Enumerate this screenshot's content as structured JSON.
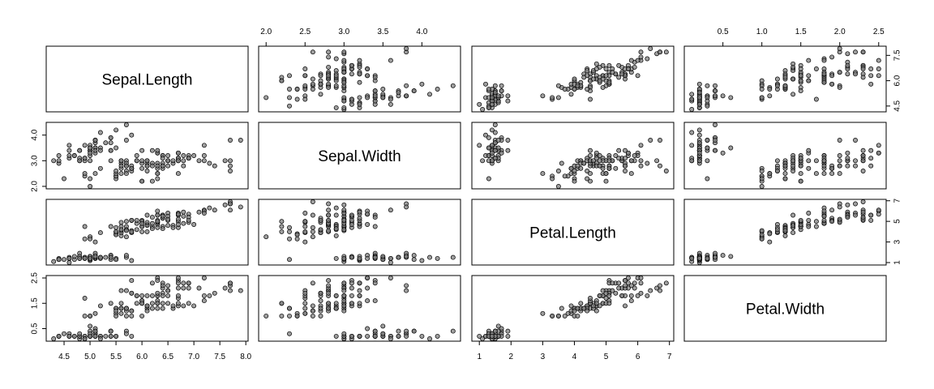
{
  "chart_data": {
    "type": "scatter",
    "title": "",
    "variables": [
      "Sepal.Length",
      "Sepal.Width",
      "Petal.Length",
      "Petal.Width"
    ],
    "ticks": [
      [
        4.5,
        6.0,
        7.5
      ],
      [
        2.0,
        3.0,
        4.0
      ],
      [
        1,
        3,
        5,
        7
      ],
      [
        0.5,
        1.5,
        2.5
      ]
    ],
    "top_ticks": [
      [],
      [
        2.0,
        2.5,
        3.0,
        3.5,
        4.0
      ],
      [],
      [
        0.5,
        1.0,
        1.5,
        2.0,
        2.5
      ]
    ],
    "bottom_ticks": [
      [
        4.5,
        5.0,
        5.5,
        6.0,
        6.5,
        7.0,
        7.5,
        8.0
      ],
      [],
      [
        1,
        2,
        3,
        4,
        5,
        6,
        7
      ],
      []
    ],
    "tick_label_format": [
      [
        "4.5",
        "6.0",
        "7.5"
      ],
      [
        "2.0",
        "3.0",
        "4.0"
      ],
      [
        "1",
        "3",
        "5",
        "7"
      ],
      [
        "0.5",
        "1.5",
        "2.5"
      ]
    ],
    "top_tick_format": [
      [],
      [
        "2.0",
        "2.5",
        "3.0",
        "3.5",
        "4.0"
      ],
      [],
      [
        "0.5",
        "1.0",
        "1.5",
        "2.0",
        "2.5"
      ]
    ],
    "bottom_tick_format": [
      [
        "4.5",
        "5.0",
        "5.5",
        "6.0",
        "6.5",
        "7.0",
        "7.5",
        "8.0"
      ],
      [],
      [
        "1",
        "2",
        "3",
        "4",
        "5",
        "6",
        "7"
      ],
      []
    ],
    "point_color": "#7f7f7f",
    "point_alpha": 0.75,
    "records": [
      [
        5.1,
        3.5,
        1.4,
        0.2
      ],
      [
        4.9,
        3.0,
        1.4,
        0.2
      ],
      [
        4.7,
        3.2,
        1.3,
        0.2
      ],
      [
        4.6,
        3.1,
        1.5,
        0.2
      ],
      [
        5.0,
        3.6,
        1.4,
        0.2
      ],
      [
        5.4,
        3.9,
        1.7,
        0.4
      ],
      [
        4.6,
        3.4,
        1.4,
        0.3
      ],
      [
        5.0,
        3.4,
        1.5,
        0.2
      ],
      [
        4.4,
        2.9,
        1.4,
        0.2
      ],
      [
        4.9,
        3.1,
        1.5,
        0.1
      ],
      [
        5.4,
        3.7,
        1.5,
        0.2
      ],
      [
        4.8,
        3.4,
        1.6,
        0.2
      ],
      [
        4.8,
        3.0,
        1.4,
        0.1
      ],
      [
        4.3,
        3.0,
        1.1,
        0.1
      ],
      [
        5.8,
        4.0,
        1.2,
        0.2
      ],
      [
        5.7,
        4.4,
        1.5,
        0.4
      ],
      [
        5.4,
        3.9,
        1.3,
        0.4
      ],
      [
        5.1,
        3.5,
        1.4,
        0.3
      ],
      [
        5.7,
        3.8,
        1.7,
        0.3
      ],
      [
        5.1,
        3.8,
        1.5,
        0.3
      ],
      [
        5.4,
        3.4,
        1.7,
        0.2
      ],
      [
        5.1,
        3.7,
        1.5,
        0.4
      ],
      [
        4.6,
        3.6,
        1.0,
        0.2
      ],
      [
        5.1,
        3.3,
        1.7,
        0.5
      ],
      [
        4.8,
        3.4,
        1.9,
        0.2
      ],
      [
        5.0,
        3.0,
        1.6,
        0.2
      ],
      [
        5.0,
        3.4,
        1.6,
        0.4
      ],
      [
        5.2,
        3.5,
        1.5,
        0.2
      ],
      [
        5.2,
        3.4,
        1.4,
        0.2
      ],
      [
        4.7,
        3.2,
        1.6,
        0.2
      ],
      [
        4.8,
        3.1,
        1.6,
        0.2
      ],
      [
        5.4,
        3.4,
        1.5,
        0.4
      ],
      [
        5.2,
        4.1,
        1.5,
        0.1
      ],
      [
        5.5,
        4.2,
        1.4,
        0.2
      ],
      [
        4.9,
        3.1,
        1.5,
        0.2
      ],
      [
        5.0,
        3.2,
        1.2,
        0.2
      ],
      [
        5.5,
        3.5,
        1.3,
        0.2
      ],
      [
        4.9,
        3.6,
        1.4,
        0.1
      ],
      [
        4.4,
        3.0,
        1.3,
        0.2
      ],
      [
        5.1,
        3.4,
        1.5,
        0.2
      ],
      [
        5.0,
        3.5,
        1.3,
        0.3
      ],
      [
        4.5,
        2.3,
        1.3,
        0.3
      ],
      [
        4.4,
        3.2,
        1.3,
        0.2
      ],
      [
        5.0,
        3.5,
        1.6,
        0.6
      ],
      [
        5.1,
        3.8,
        1.9,
        0.4
      ],
      [
        4.8,
        3.0,
        1.4,
        0.3
      ],
      [
        5.1,
        3.8,
        1.6,
        0.2
      ],
      [
        4.6,
        3.2,
        1.4,
        0.2
      ],
      [
        5.3,
        3.7,
        1.5,
        0.2
      ],
      [
        5.0,
        3.3,
        1.4,
        0.2
      ],
      [
        7.0,
        3.2,
        4.7,
        1.4
      ],
      [
        6.4,
        3.2,
        4.5,
        1.5
      ],
      [
        6.9,
        3.1,
        4.9,
        1.5
      ],
      [
        5.5,
        2.3,
        4.0,
        1.3
      ],
      [
        6.5,
        2.8,
        4.6,
        1.5
      ],
      [
        5.7,
        2.8,
        4.5,
        1.3
      ],
      [
        6.3,
        3.3,
        4.7,
        1.6
      ],
      [
        4.9,
        2.4,
        3.3,
        1.0
      ],
      [
        6.6,
        2.9,
        4.6,
        1.3
      ],
      [
        5.2,
        2.7,
        3.9,
        1.4
      ],
      [
        5.0,
        2.0,
        3.5,
        1.0
      ],
      [
        5.9,
        3.0,
        4.2,
        1.5
      ],
      [
        6.0,
        2.2,
        4.0,
        1.0
      ],
      [
        6.1,
        2.9,
        4.7,
        1.4
      ],
      [
        5.6,
        2.9,
        3.6,
        1.3
      ],
      [
        6.7,
        3.1,
        4.4,
        1.4
      ],
      [
        5.6,
        3.0,
        4.5,
        1.5
      ],
      [
        5.8,
        2.7,
        4.1,
        1.0
      ],
      [
        6.2,
        2.2,
        4.5,
        1.5
      ],
      [
        5.6,
        2.5,
        3.9,
        1.1
      ],
      [
        5.9,
        3.2,
        4.8,
        1.8
      ],
      [
        6.1,
        2.8,
        4.0,
        1.3
      ],
      [
        6.3,
        2.5,
        4.9,
        1.5
      ],
      [
        6.1,
        2.8,
        4.7,
        1.2
      ],
      [
        6.4,
        2.9,
        4.3,
        1.3
      ],
      [
        6.6,
        3.0,
        4.4,
        1.4
      ],
      [
        6.8,
        2.8,
        4.8,
        1.4
      ],
      [
        6.7,
        3.0,
        5.0,
        1.7
      ],
      [
        6.0,
        2.9,
        4.5,
        1.5
      ],
      [
        5.7,
        2.6,
        3.5,
        1.0
      ],
      [
        5.5,
        2.4,
        3.8,
        1.1
      ],
      [
        5.5,
        2.4,
        3.7,
        1.0
      ],
      [
        5.8,
        2.7,
        3.9,
        1.2
      ],
      [
        6.0,
        2.7,
        5.1,
        1.6
      ],
      [
        5.4,
        3.0,
        4.5,
        1.5
      ],
      [
        6.0,
        3.4,
        4.5,
        1.6
      ],
      [
        6.7,
        3.1,
        4.7,
        1.5
      ],
      [
        6.3,
        2.3,
        4.4,
        1.3
      ],
      [
        5.6,
        3.0,
        4.1,
        1.3
      ],
      [
        5.5,
        2.5,
        4.0,
        1.3
      ],
      [
        5.5,
        2.6,
        4.4,
        1.2
      ],
      [
        6.1,
        3.0,
        4.6,
        1.4
      ],
      [
        5.8,
        2.6,
        4.0,
        1.2
      ],
      [
        5.0,
        2.3,
        3.3,
        1.0
      ],
      [
        5.6,
        2.7,
        4.2,
        1.3
      ],
      [
        5.7,
        3.0,
        4.2,
        1.2
      ],
      [
        5.7,
        2.9,
        4.2,
        1.3
      ],
      [
        6.2,
        2.9,
        4.3,
        1.3
      ],
      [
        5.1,
        2.5,
        3.0,
        1.1
      ],
      [
        5.7,
        2.8,
        4.1,
        1.3
      ],
      [
        6.3,
        3.3,
        6.0,
        2.5
      ],
      [
        5.8,
        2.7,
        5.1,
        1.9
      ],
      [
        7.1,
        3.0,
        5.9,
        2.1
      ],
      [
        6.3,
        2.9,
        5.6,
        1.8
      ],
      [
        6.5,
        3.0,
        5.8,
        2.2
      ],
      [
        7.6,
        3.0,
        6.6,
        2.1
      ],
      [
        4.9,
        2.5,
        4.5,
        1.7
      ],
      [
        7.3,
        2.9,
        6.3,
        1.8
      ],
      [
        6.7,
        2.5,
        5.8,
        1.8
      ],
      [
        7.2,
        3.6,
        6.1,
        2.5
      ],
      [
        6.5,
        3.2,
        5.1,
        2.0
      ],
      [
        6.4,
        2.7,
        5.3,
        1.9
      ],
      [
        6.8,
        3.0,
        5.5,
        2.1
      ],
      [
        5.7,
        2.5,
        5.0,
        2.0
      ],
      [
        5.8,
        2.8,
        5.1,
        2.4
      ],
      [
        6.4,
        3.2,
        5.3,
        2.3
      ],
      [
        6.5,
        3.0,
        5.5,
        1.8
      ],
      [
        7.7,
        3.8,
        6.7,
        2.2
      ],
      [
        7.7,
        2.6,
        6.9,
        2.3
      ],
      [
        6.0,
        2.2,
        5.0,
        1.5
      ],
      [
        6.9,
        3.2,
        5.7,
        2.3
      ],
      [
        5.6,
        2.8,
        4.9,
        2.0
      ],
      [
        7.7,
        2.8,
        6.7,
        2.0
      ],
      [
        6.3,
        2.7,
        4.9,
        1.8
      ],
      [
        6.7,
        3.3,
        5.7,
        2.1
      ],
      [
        7.2,
        3.2,
        6.0,
        1.8
      ],
      [
        6.2,
        2.8,
        4.8,
        1.8
      ],
      [
        6.1,
        3.0,
        4.9,
        1.8
      ],
      [
        6.4,
        2.8,
        5.6,
        2.1
      ],
      [
        7.2,
        3.0,
        5.8,
        1.6
      ],
      [
        7.4,
        2.8,
        6.1,
        1.9
      ],
      [
        7.9,
        3.8,
        6.4,
        2.0
      ],
      [
        6.4,
        2.8,
        5.6,
        2.2
      ],
      [
        6.3,
        2.8,
        5.1,
        1.5
      ],
      [
        6.1,
        2.6,
        5.6,
        1.4
      ],
      [
        7.7,
        3.0,
        6.1,
        2.3
      ],
      [
        6.3,
        3.4,
        5.6,
        2.4
      ],
      [
        6.4,
        3.1,
        5.5,
        1.8
      ],
      [
        6.0,
        3.0,
        4.8,
        1.8
      ],
      [
        6.9,
        3.1,
        5.4,
        2.1
      ],
      [
        6.7,
        3.1,
        5.6,
        2.4
      ],
      [
        6.9,
        3.1,
        5.1,
        2.3
      ],
      [
        5.8,
        2.7,
        5.1,
        1.9
      ],
      [
        6.8,
        3.2,
        5.9,
        2.3
      ],
      [
        6.7,
        3.3,
        5.7,
        2.5
      ],
      [
        6.7,
        3.0,
        5.2,
        2.3
      ],
      [
        6.3,
        2.5,
        5.0,
        1.9
      ],
      [
        6.5,
        3.0,
        5.2,
        2.0
      ],
      [
        6.2,
        3.4,
        5.4,
        2.3
      ],
      [
        5.9,
        3.0,
        5.1,
        1.8
      ]
    ]
  }
}
